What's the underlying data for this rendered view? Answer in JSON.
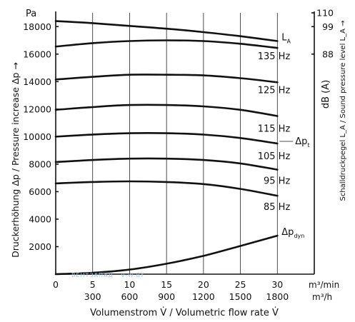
{
  "chart_data": {
    "type": "line",
    "title": "",
    "y_unit": "Pa",
    "ylabel_left": "Druckerhöhung Δp / Pressure increase Δp →",
    "ylabel_right": "Schalldruckpegel L_A / Sound pressure level L_A →",
    "right_unit": "dB (A)",
    "xlabel": "Volumenstrom V̇ / Volumetric flow rate V̇",
    "x_unit_primary": "m³/min",
    "x_unit_secondary": "m³/h",
    "xlim": [
      0,
      35
    ],
    "ylim": [
      0,
      19000
    ],
    "grid": "vertical",
    "x_ticks": [
      "0",
      "5",
      "10",
      "15",
      "20",
      "25",
      "30"
    ],
    "x_ticks_secondary": [
      "300",
      "600",
      "900",
      "1200",
      "1500",
      "1800"
    ],
    "y_ticks": [
      "2000",
      "4000",
      "6000",
      "8000",
      "10000",
      "12000",
      "14000",
      "16000",
      "18000"
    ],
    "right_ticks": [
      "88",
      "99",
      "110"
    ],
    "series": [
      {
        "name": "L_A",
        "kind": "sound",
        "label": "L",
        "label_sub": "A",
        "x": [
          0,
          5,
          10,
          15,
          20,
          25,
          30
        ],
        "y": [
          18400,
          18250,
          18050,
          17850,
          17600,
          17300,
          16950
        ]
      },
      {
        "name": "135 Hz",
        "label": "135 Hz",
        "x": [
          0,
          5,
          10,
          15,
          20,
          25,
          30
        ],
        "y": [
          16550,
          16800,
          16950,
          17000,
          16950,
          16750,
          16450
        ]
      },
      {
        "name": "125 Hz",
        "label": "125 Hz",
        "x": [
          0,
          5,
          10,
          15,
          20,
          25,
          30
        ],
        "y": [
          14150,
          14350,
          14500,
          14500,
          14450,
          14250,
          13950
        ]
      },
      {
        "name": "115 Hz",
        "label": "115 Hz",
        "x": [
          0,
          5,
          10,
          15,
          20,
          25,
          30
        ],
        "y": [
          11950,
          12150,
          12300,
          12300,
          12200,
          11950,
          11500
        ]
      },
      {
        "name": "Δp_t",
        "label": "Δp",
        "label_sub": "t",
        "x": [
          0,
          5,
          10,
          15,
          20,
          25,
          30
        ],
        "y": [
          10000,
          10150,
          10250,
          10250,
          10150,
          9900,
          9500
        ]
      },
      {
        "name": "105 Hz",
        "label": "105 Hz",
        "x": [
          0,
          5,
          10,
          15,
          20,
          25,
          30
        ],
        "y": [
          10000,
          10150,
          10250,
          10250,
          10150,
          9900,
          9500
        ]
      },
      {
        "name": "95 Hz",
        "label": "95 Hz",
        "x": [
          0,
          5,
          10,
          15,
          20,
          25,
          30
        ],
        "y": [
          8150,
          8300,
          8400,
          8400,
          8300,
          8050,
          7600
        ]
      },
      {
        "name": "85 Hz",
        "label": "85 Hz",
        "x": [
          0,
          5,
          10,
          15,
          20,
          25,
          30
        ],
        "y": [
          6600,
          6700,
          6750,
          6700,
          6550,
          6200,
          5700
        ]
      },
      {
        "name": "Δp_dyn",
        "label": "Δp",
        "label_sub": "dyn",
        "x": [
          0,
          5,
          10,
          15,
          20,
          25,
          30
        ],
        "y": [
          0,
          100,
          330,
          760,
          1330,
          2050,
          2800
        ]
      }
    ]
  },
  "watermark": "ВЕНТЗАПАД · V-W.BY"
}
